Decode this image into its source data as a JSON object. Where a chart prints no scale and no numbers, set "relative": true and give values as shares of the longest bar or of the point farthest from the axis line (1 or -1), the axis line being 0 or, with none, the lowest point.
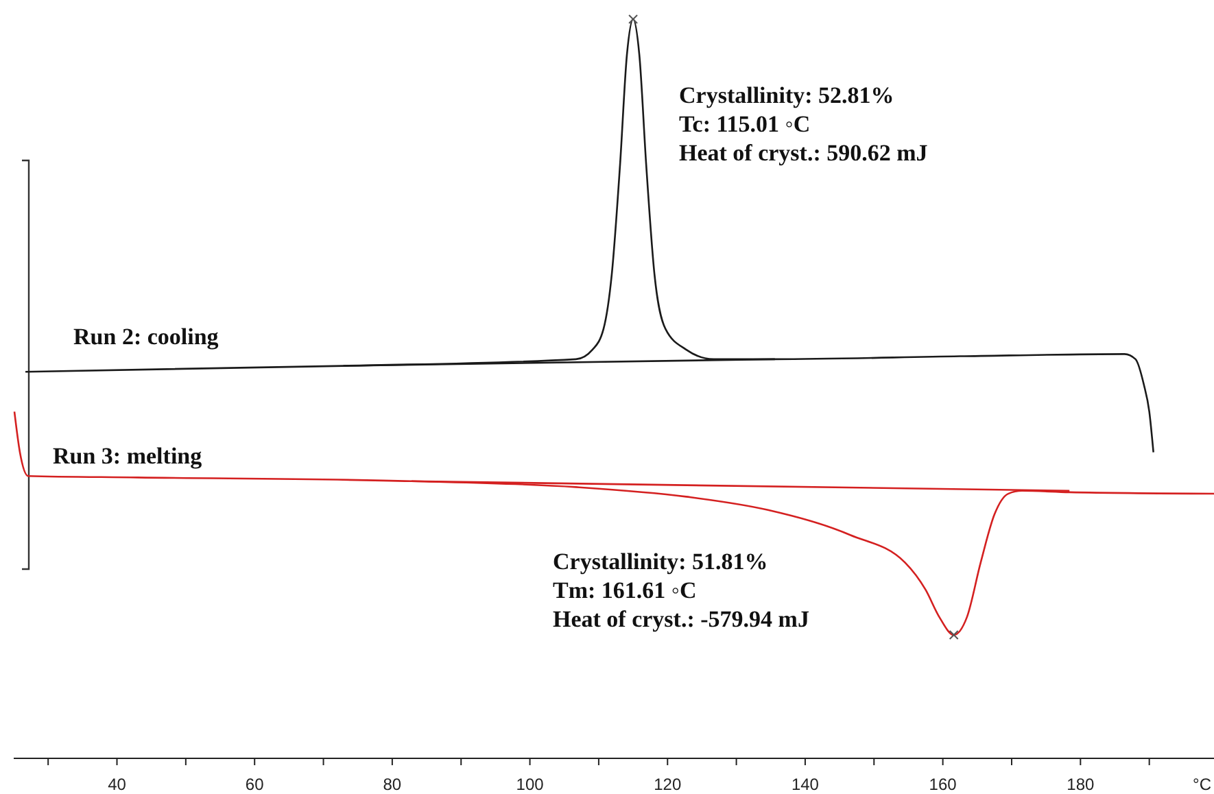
{
  "chart_data": {
    "type": "line",
    "relative": true,
    "xlabel": "°C",
    "xlim": [
      25,
      200
    ],
    "xticks": [
      {
        "value": 30,
        "label": null
      },
      40,
      {
        "value": 50,
        "label": null
      },
      60,
      {
        "value": 70,
        "label": null
      },
      80,
      {
        "value": 90,
        "label": null
      },
      100,
      {
        "value": 110,
        "label": null
      },
      120,
      {
        "value": 130,
        "label": null
      },
      140,
      {
        "value": 150,
        "label": null
      },
      160,
      {
        "value": 170,
        "label": null
      },
      180,
      {
        "value": 190,
        "label": null
      }
    ],
    "tick_labels": "x",
    "series": [
      {
        "name": "Run 2: cooling",
        "color": "#1a1a1a",
        "x": [
          26.7,
          72.9,
          106.7,
          109.1,
          110.7,
          111.9,
          113.1,
          114.1,
          115.0,
          115.9,
          116.9,
          118.1,
          119.7,
          122.7,
          126.7,
          135.6,
          162.5,
          186.4,
          188.0,
          189.2,
          190.0,
          190.6
        ],
        "values": [
          0.523,
          0.531,
          0.54,
          0.553,
          0.581,
          0.655,
          0.803,
          0.952,
          1.0,
          0.952,
          0.803,
          0.655,
          0.581,
          0.553,
          0.54,
          0.54,
          0.544,
          0.547,
          0.54,
          0.506,
          0.469,
          0.414
        ]
      },
      {
        "color": "#1a1a1a",
        "x": [
          72.9,
          135.6
        ],
        "values": [
          0.531,
          0.54
        ]
      },
      {
        "name": "Run 3: melting",
        "color": "#d42020",
        "x": [
          25.1,
          25.9,
          27.1,
          43.0,
          82.8,
          106.7,
          122.7,
          134.6,
          146.6,
          154.5,
          157.5,
          159.5,
          161.6,
          163.5,
          165.5,
          167.5,
          169.5,
          171.5,
          178.4,
          199.4
        ],
        "values": [
          0.469,
          0.414,
          0.382,
          0.38,
          0.375,
          0.367,
          0.354,
          0.336,
          0.302,
          0.265,
          0.228,
          0.191,
          0.167,
          0.191,
          0.265,
          0.33,
          0.358,
          0.362,
          0.36,
          0.358
        ]
      },
      {
        "color": "#d42020",
        "x": [
          82.8,
          178.4
        ],
        "values": [
          0.375,
          0.362
        ]
      }
    ],
    "annotations": [
      "Crystallinity: 52.81%\nTc: 115.01 ◦C\nHeat of cryst.: 590.62 mJ",
      "Crystallinity: 51.81%\nTm: 161.61  ◦C\nHeat of cryst.: -579.94  mJ"
    ]
  }
}
